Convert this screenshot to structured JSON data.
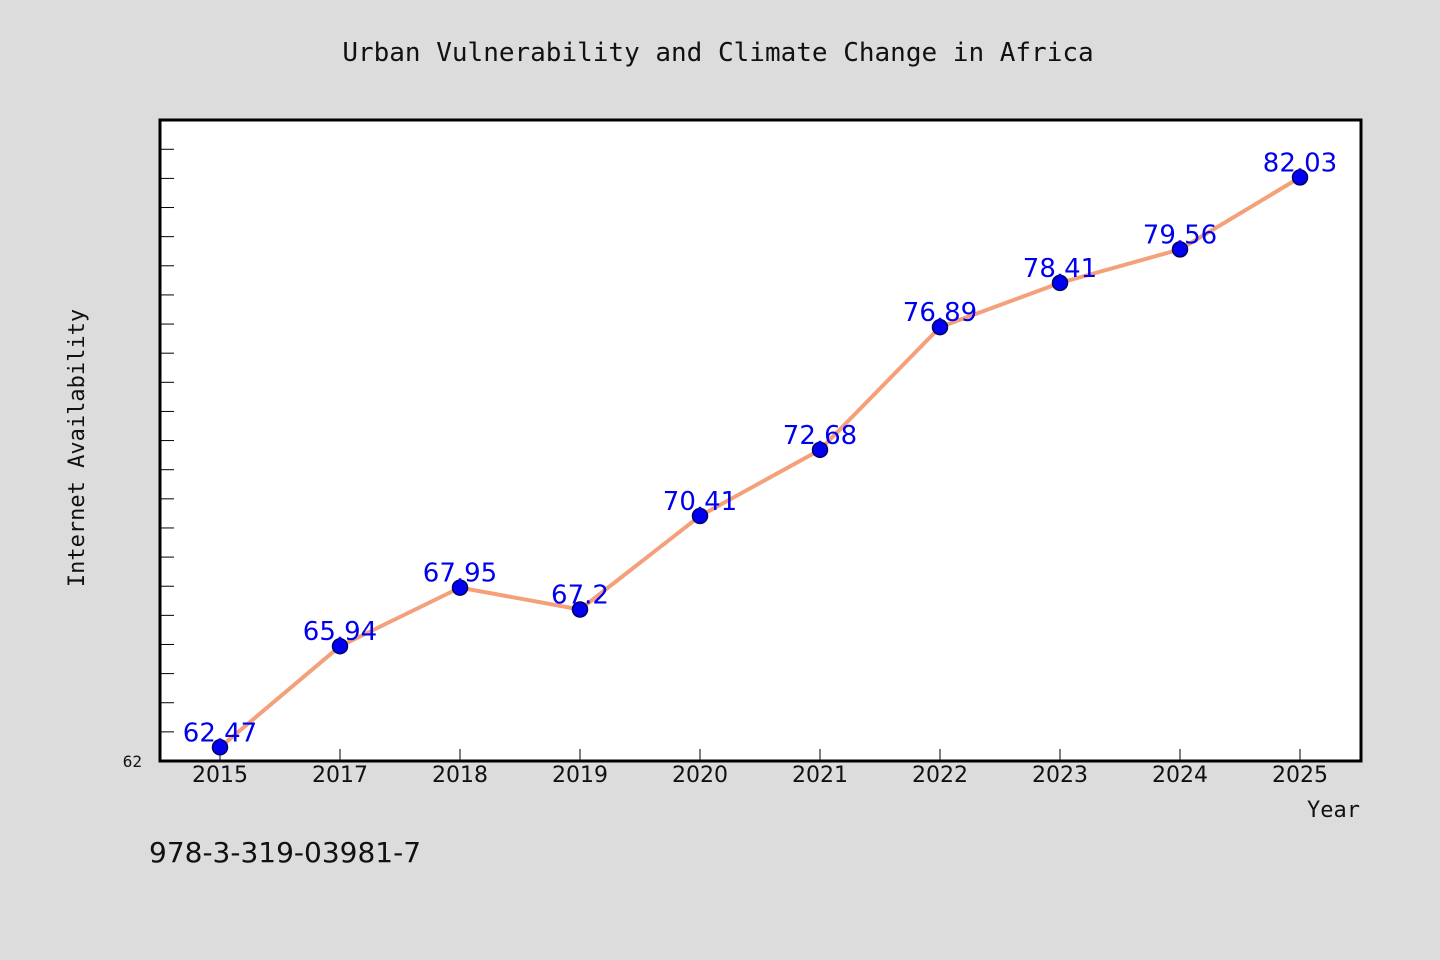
{
  "footer_text": "978-3-319-03981-7",
  "chart_data": {
    "type": "line",
    "title": "Urban Vulnerability and Climate Change in Africa",
    "xlabel": "Year",
    "ylabel": "Internet Availability",
    "categories": [
      "2015",
      "2017",
      "2018",
      "2019",
      "2020",
      "2021",
      "2022",
      "2023",
      "2024",
      "2025"
    ],
    "series": [
      {
        "values": [
          62.47,
          65.94,
          67.95,
          67.2,
          70.41,
          72.68,
          76.89,
          78.41,
          79.56,
          82.03
        ],
        "data_labels": [
          "62.47",
          "65.94",
          "67.95",
          "67.2",
          "70.41",
          "72.68",
          "76.89",
          "78.41",
          "79.56",
          "82.03"
        ]
      }
    ],
    "ylim": [
      62,
      84
    ],
    "y_tick_labels": [
      "62"
    ],
    "grid": false,
    "legend": false,
    "colors": {
      "line": "#f4a07a",
      "marker_fill": "#0000ee",
      "marker_stroke": "#000066",
      "data_label": "#0000ee",
      "plot_background": "#ffffff",
      "page_background": "#dcdcdc"
    }
  }
}
